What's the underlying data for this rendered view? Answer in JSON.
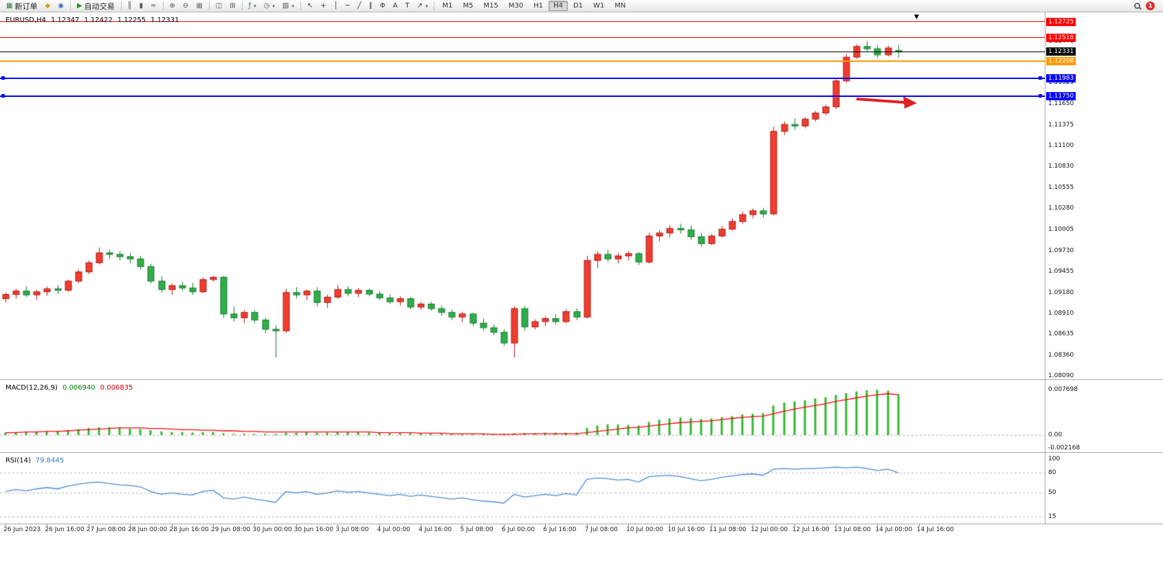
{
  "toolbar": {
    "buttons": [
      {
        "name": "new-order",
        "glyph": "▦",
        "color": "#2e7d32",
        "label": "新订单"
      },
      {
        "name": "indicator-list",
        "glyph": "◆",
        "color": "#d4a017"
      },
      {
        "name": "market-watch",
        "glyph": "◉",
        "color": "#3a6ea5"
      },
      {
        "name": "sep"
      },
      {
        "name": "autotrading",
        "glyph": "▶",
        "color": "#119911",
        "label": "自动交易"
      },
      {
        "name": "sep"
      },
      {
        "name": "chart-bars",
        "glyph": "║",
        "color": "#555555"
      },
      {
        "name": "chart-candlesticks",
        "glyph": "▮",
        "color": "#555555"
      },
      {
        "name": "chart-line",
        "glyph": "≈",
        "color": "#555555"
      },
      {
        "name": "sep"
      },
      {
        "name": "zoom-in",
        "glyph": "⊕",
        "color": "#555555"
      },
      {
        "name": "zoom-out",
        "glyph": "⊖",
        "color": "#555555"
      },
      {
        "name": "chart-grid",
        "glyph": "▦",
        "color": "#777777"
      },
      {
        "name": "sep"
      },
      {
        "name": "arrange-windows",
        "glyph": "◫",
        "color": "#555555"
      },
      {
        "name": "tile-windows",
        "glyph": "⊞",
        "color": "#555555"
      },
      {
        "name": "sep"
      },
      {
        "name": "add-indicator",
        "glyph": "ƒ",
        "color": "#2e7d32",
        "caret": true
      },
      {
        "name": "periods-menu",
        "glyph": "◷",
        "color": "#555555",
        "caret": true
      },
      {
        "name": "templates-menu",
        "glyph": "▨",
        "color": "#555555",
        "caret": true
      },
      {
        "name": "sep"
      },
      {
        "name": "cursor",
        "glyph": "↖",
        "color": "#333333"
      },
      {
        "name": "crosshair",
        "glyph": "+",
        "color": "#333333"
      },
      {
        "name": "vertical-line",
        "glyph": "│",
        "color": "#333333"
      },
      {
        "name": "horizontal-line",
        "glyph": "─",
        "color": "#333333"
      },
      {
        "name": "trendline",
        "glyph": "╱",
        "color": "#333333"
      },
      {
        "name": "equidistant-channel",
        "glyph": "∥",
        "color": "#333333"
      },
      {
        "name": "fibonacci",
        "glyph": "Φ",
        "color": "#333333"
      },
      {
        "name": "text",
        "glyph": "A",
        "color": "#333333"
      },
      {
        "name": "text-label",
        "glyph": "T",
        "color": "#333333"
      },
      {
        "name": "arrow-objects",
        "glyph": "↗",
        "color": "#333333",
        "caret": true
      }
    ],
    "timeframes": {
      "items": [
        "M1",
        "M5",
        "M15",
        "M30",
        "H1",
        "H4",
        "D1",
        "W1",
        "MN"
      ],
      "active": "H4"
    },
    "notification_count": "1"
  },
  "chart": {
    "title": {
      "symbol_period": "EURUSD,H4",
      "open": "1.12347",
      "high": "1.12422",
      "low": "1.12255",
      "close": "1.12331"
    },
    "colors": {
      "bull_fill": "#ef3e2e",
      "bull_border": "#b01818",
      "bear_fill": "#2fae49",
      "bear_border": "#157a2e",
      "bid_line": "#000000",
      "macd_hist": "#2eb82e",
      "macd_signal": "#ff0000",
      "rsi_line": "#4189d6",
      "arrow": "#e02020"
    },
    "price_axis": {
      "ticks": [
        "1.12470",
        "1.11925",
        "1.11650",
        "1.11375",
        "1.11100",
        "1.10830",
        "1.10555",
        "1.10280",
        "1.10005",
        "1.09730",
        "1.09455",
        "1.09180",
        "1.08910",
        "1.08635",
        "1.08360",
        "1.08090"
      ],
      "levels": [
        {
          "name": "resistance-line-upper",
          "label": "1.12725",
          "price": 1.12725,
          "color": "#FF0000",
          "width": 1
        },
        {
          "name": "resistance-line-lower",
          "label": "1.12518",
          "price": 1.12518,
          "color": "#FF0000",
          "width": 1
        },
        {
          "name": "pivot-line-orange",
          "label": "1.12208",
          "price": 1.12208,
          "color": "#FF9C00",
          "width": 2
        },
        {
          "name": "support-line-blue-upper",
          "label": "1.11983",
          "price": 1.11983,
          "color": "#0000FF",
          "width": 2,
          "handles": true
        },
        {
          "name": "support-line-blue-lower",
          "label": "1.11750",
          "price": 1.1175,
          "color": "#0000FF",
          "width": 2,
          "handles": true
        }
      ],
      "bid": {
        "label": "1.12331",
        "price": 1.12331,
        "color": "#000000"
      }
    }
  },
  "indicators": {
    "macd": {
      "label": "MACD(12,26,9)",
      "value_main": "0.006940",
      "value_signal": "0.006835",
      "axis": [
        "0.007698",
        "0.00",
        "-0.002168"
      ]
    },
    "rsi": {
      "label": "RSI(14)",
      "value": "79.8445",
      "axis": [
        "100",
        "80",
        "50",
        "15"
      ],
      "levels": [
        80,
        50,
        15
      ]
    }
  },
  "chart_data": {
    "type": "candlestick",
    "symbol": "EURUSD",
    "timeframe": "H4",
    "price_range": [
      1.0809,
      1.12725
    ],
    "bars_per_label": 4,
    "x_labels": [
      "26 Jun 2023",
      "26 Jun 16:00",
      "27 Jun 08:00",
      "28 Jun 00:00",
      "28 Jun 16:00",
      "29 Jun 08:00",
      "30 Jun 00:00",
      "30 Jun 16:00",
      "3 Jul 08:00",
      "4 Jul 00:00",
      "4 Jul 16:00",
      "5 Jul 08:00",
      "6 Jul 00:00",
      "6 Jul 16:00",
      "7 Jul 08:00",
      "10 Jul 00:00",
      "10 Jul 16:00",
      "11 Jul 08:00",
      "12 Jul 00:00",
      "12 Jul 16:00",
      "13 Jul 08:00",
      "14 Jul 00:00",
      "14 Jul 16:00"
    ],
    "candles": {
      "open": [
        1.091,
        1.09155,
        1.092,
        1.0915,
        1.0919,
        1.0923,
        1.0921,
        1.0933,
        1.0945,
        1.0957,
        1.097,
        1.0968,
        1.0965,
        1.0962,
        1.0952,
        1.0933,
        1.0922,
        1.0927,
        1.0924,
        1.0919,
        1.0935,
        1.0938,
        1.089,
        1.0885,
        1.0892,
        1.0882,
        1.087,
        1.0868,
        1.0918,
        1.0915,
        1.092,
        1.0905,
        1.0912,
        1.0922,
        1.0917,
        1.0921,
        1.0916,
        1.0911,
        1.0906,
        1.091,
        1.0899,
        1.0903,
        1.0897,
        1.0892,
        1.0886,
        1.089,
        1.0878,
        1.0872,
        1.0866,
        1.0852,
        1.0897,
        1.0873,
        1.088,
        1.0884,
        1.088,
        1.0893,
        1.0886,
        1.096,
        1.0968,
        1.0962,
        1.0966,
        1.0969,
        1.0958,
        1.0992,
        1.0996,
        1.1002,
        1.1,
        1.0991,
        1.0982,
        1.0992,
        1.1001,
        1.1011,
        1.102,
        1.1025,
        1.1021,
        1.1129,
        1.1138,
        1.1136,
        1.1145,
        1.1153,
        1.1161,
        1.1195,
        1.1226,
        1.124,
        1.1237,
        1.1229,
        1.12347
      ],
      "high": [
        1.0918,
        1.0923,
        1.0926,
        1.0922,
        1.0926,
        1.0928,
        1.0935,
        1.0948,
        1.096,
        1.0977,
        1.0974,
        1.0972,
        1.097,
        1.0966,
        1.0956,
        1.0939,
        1.093,
        1.0932,
        1.0931,
        1.0938,
        1.094,
        1.094,
        1.09,
        1.0895,
        1.0895,
        1.0885,
        1.0875,
        1.0923,
        1.0925,
        1.0922,
        1.0925,
        1.0915,
        1.0928,
        1.0926,
        1.0924,
        1.0923,
        1.092,
        1.0916,
        1.0913,
        1.0912,
        1.0906,
        1.0906,
        1.0901,
        1.0896,
        1.0893,
        1.0892,
        1.0884,
        1.0876,
        1.087,
        1.09,
        1.09,
        1.0883,
        1.0887,
        1.089,
        1.0896,
        1.0897,
        1.0966,
        1.0972,
        1.0974,
        1.097,
        1.0972,
        1.0971,
        1.0996,
        1.1,
        1.1006,
        1.1008,
        1.1006,
        1.0996,
        1.0995,
        1.1005,
        1.1015,
        1.1024,
        1.1028,
        1.1029,
        1.1135,
        1.1142,
        1.1146,
        1.1148,
        1.1156,
        1.1164,
        1.1199,
        1.123,
        1.1243,
        1.1247,
        1.1242,
        1.1241,
        1.12422
      ],
      "low": [
        1.0905,
        1.091,
        1.0912,
        1.0908,
        1.0914,
        1.0916,
        1.0919,
        1.093,
        1.0942,
        1.0955,
        1.0962,
        1.096,
        1.0956,
        1.0948,
        1.093,
        1.0918,
        1.0915,
        1.092,
        1.0915,
        1.0917,
        1.0932,
        1.0885,
        1.088,
        1.0878,
        1.0878,
        1.0865,
        1.0833,
        1.0865,
        1.091,
        1.0908,
        1.09,
        1.0898,
        1.091,
        1.0913,
        1.0912,
        1.0913,
        1.0908,
        1.0903,
        1.0901,
        1.0896,
        1.0895,
        1.0894,
        1.0888,
        1.0882,
        1.0879,
        1.0874,
        1.0868,
        1.0862,
        1.0848,
        1.0833,
        1.0868,
        1.087,
        1.0874,
        1.0876,
        1.0878,
        1.0882,
        1.0884,
        1.095,
        1.0958,
        1.0956,
        1.096,
        1.0954,
        1.0956,
        1.0985,
        1.099,
        1.0995,
        1.0987,
        1.0978,
        1.098,
        1.099,
        1.0999,
        1.1008,
        1.1015,
        1.1016,
        1.1019,
        1.1124,
        1.1131,
        1.1133,
        1.1142,
        1.115,
        1.1158,
        1.1193,
        1.1224,
        1.1233,
        1.1225,
        1.1227,
        1.12255
      ],
      "close": [
        1.09155,
        1.092,
        1.0915,
        1.0919,
        1.0923,
        1.0921,
        1.0933,
        1.0945,
        1.0957,
        1.097,
        1.0968,
        1.0965,
        1.0962,
        1.0952,
        1.0933,
        1.0922,
        1.0927,
        1.0924,
        1.0919,
        1.0935,
        1.0938,
        1.089,
        1.0885,
        1.0892,
        1.0882,
        1.087,
        1.0868,
        1.0918,
        1.0915,
        1.092,
        1.0905,
        1.0912,
        1.0922,
        1.0917,
        1.0921,
        1.0916,
        1.0911,
        1.0906,
        1.091,
        1.0899,
        1.0903,
        1.0897,
        1.0892,
        1.0886,
        1.089,
        1.0878,
        1.0872,
        1.0866,
        1.0852,
        1.0897,
        1.0873,
        1.088,
        1.0884,
        1.088,
        1.0893,
        1.0886,
        1.096,
        1.0968,
        1.0962,
        1.0966,
        1.0969,
        1.0958,
        1.0992,
        1.0996,
        1.1002,
        1.1,
        1.0991,
        1.0982,
        1.0992,
        1.1001,
        1.1011,
        1.102,
        1.1025,
        1.1021,
        1.1129,
        1.1138,
        1.1136,
        1.1145,
        1.1153,
        1.1161,
        1.1195,
        1.1226,
        1.124,
        1.1237,
        1.1229,
        1.1238,
        1.12331
      ]
    },
    "macd": {
      "range": [
        -0.002168,
        0.007698
      ],
      "histogram": [
        0.0004,
        0.0005,
        0.0005,
        0.0006,
        0.0006,
        0.0007,
        0.0008,
        0.001,
        0.0012,
        0.0013,
        0.0013,
        0.0012,
        0.0011,
        0.001,
        0.0008,
        0.0006,
        0.0005,
        0.0005,
        0.0004,
        0.0005,
        0.0005,
        0.0003,
        0.0002,
        0.0002,
        0.0002,
        0.0002,
        0.0002,
        0.0004,
        0.0004,
        0.0005,
        0.0004,
        0.0004,
        0.0005,
        0.0005,
        0.0005,
        0.0004,
        0.0004,
        0.0003,
        0.0003,
        0.0003,
        0.0003,
        0.0002,
        0.0002,
        0.0002,
        0.0002,
        0.0002,
        0.0002,
        0.0002,
        0.0002,
        0.0003,
        0.0003,
        0.0003,
        0.0004,
        0.0004,
        0.0004,
        0.0004,
        0.0012,
        0.0016,
        0.0018,
        0.0018,
        0.0017,
        0.0016,
        0.0022,
        0.0026,
        0.0028,
        0.003,
        0.0029,
        0.0027,
        0.0028,
        0.003,
        0.0032,
        0.0035,
        0.0036,
        0.0037,
        0.005,
        0.0055,
        0.0057,
        0.0059,
        0.0062,
        0.0064,
        0.0068,
        0.0071,
        0.0074,
        0.0076,
        0.0077,
        0.0075,
        0.00694
      ],
      "signal": [
        0.0004,
        0.0004,
        0.0005,
        0.0005,
        0.0006,
        0.0006,
        0.0007,
        0.0008,
        0.0009,
        0.001,
        0.0011,
        0.0012,
        0.0012,
        0.0012,
        0.0011,
        0.0011,
        0.001,
        0.0009,
        0.0009,
        0.0008,
        0.0008,
        0.0007,
        0.0007,
        0.0006,
        0.0006,
        0.0005,
        0.0005,
        0.0005,
        0.0005,
        0.0005,
        0.0005,
        0.0005,
        0.0005,
        0.0005,
        0.0005,
        0.0005,
        0.0004,
        0.0004,
        0.0004,
        0.0004,
        0.0003,
        0.0003,
        0.0003,
        0.0002,
        0.0002,
        0.0002,
        0.0002,
        0.0001,
        0.0001,
        0.0001,
        0.0002,
        0.0002,
        0.0002,
        0.0002,
        0.0002,
        0.0002,
        0.0004,
        0.0006,
        0.0008,
        0.001,
        0.0012,
        0.0013,
        0.0015,
        0.0017,
        0.0019,
        0.0021,
        0.0022,
        0.0023,
        0.0024,
        0.0026,
        0.0028,
        0.003,
        0.0031,
        0.0032,
        0.0036,
        0.004,
        0.0044,
        0.0047,
        0.005,
        0.0053,
        0.0057,
        0.006,
        0.0063,
        0.0066,
        0.0068,
        0.007,
        0.006835
      ]
    },
    "rsi": {
      "range": [
        0,
        100
      ],
      "values": [
        52,
        55,
        53,
        56,
        58,
        56,
        60,
        63,
        65,
        66,
        64,
        62,
        61,
        59,
        52,
        48,
        50,
        48,
        47,
        52,
        54,
        43,
        41,
        44,
        41,
        39,
        36,
        52,
        50,
        52,
        48,
        50,
        53,
        51,
        52,
        50,
        48,
        46,
        48,
        45,
        47,
        45,
        43,
        41,
        43,
        40,
        38,
        37,
        35,
        48,
        44,
        46,
        48,
        46,
        49,
        47,
        70,
        72,
        71,
        69,
        70,
        66,
        74,
        75,
        76,
        74,
        71,
        68,
        70,
        73,
        75,
        77,
        78,
        76,
        85,
        86,
        85,
        86,
        86,
        87,
        88,
        87,
        88,
        86,
        83,
        85,
        79.8445
      ]
    }
  }
}
